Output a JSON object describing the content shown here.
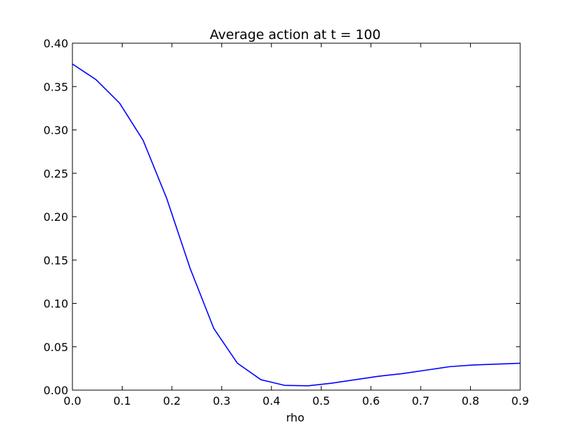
{
  "chart_data": {
    "type": "line",
    "title": "Average action at t = 100",
    "xlabel": "rho",
    "ylabel": "",
    "xlim": [
      0.0,
      0.9
    ],
    "ylim": [
      0.0,
      0.4
    ],
    "xticks": [
      "0.0",
      "0.1",
      "0.2",
      "0.3",
      "0.4",
      "0.5",
      "0.6",
      "0.7",
      "0.8",
      "0.9"
    ],
    "yticks": [
      "0.00",
      "0.05",
      "0.10",
      "0.15",
      "0.20",
      "0.25",
      "0.30",
      "0.35",
      "0.40"
    ],
    "grid": false,
    "series": [
      {
        "color": "#0000ff",
        "x": [
          0.0,
          0.0474,
          0.0947,
          0.1421,
          0.1895,
          0.2368,
          0.2842,
          0.3316,
          0.3789,
          0.4263,
          0.4737,
          0.5211,
          0.5684,
          0.6158,
          0.6632,
          0.7105,
          0.7579,
          0.8053,
          0.8526,
          0.9
        ],
        "y": [
          0.376,
          0.358,
          0.331,
          0.288,
          0.221,
          0.14,
          0.071,
          0.031,
          0.012,
          0.0055,
          0.005,
          0.008,
          0.012,
          0.016,
          0.019,
          0.023,
          0.027,
          0.029,
          0.03,
          0.031
        ]
      }
    ]
  }
}
